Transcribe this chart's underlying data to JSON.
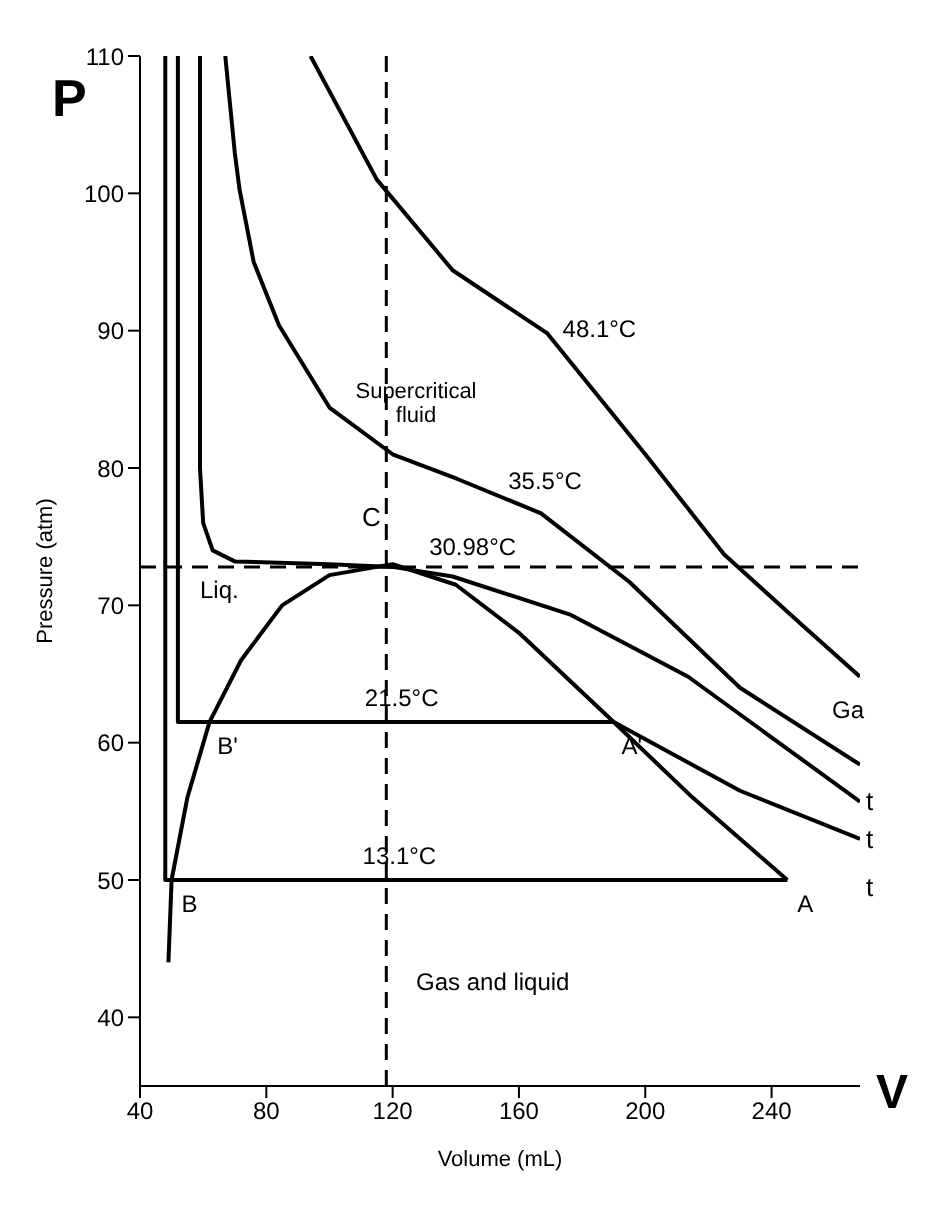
{
  "chart_data": {
    "type": "line",
    "xlabel": "Volume (mL)",
    "ylabel": "Pressure (atm)",
    "xlim": [
      40,
      268
    ],
    "xticks": [
      40,
      80,
      120,
      160,
      200,
      240
    ],
    "ylim": [
      35,
      110
    ],
    "yticks": [
      40,
      50,
      60,
      70,
      80,
      90,
      100,
      110
    ],
    "grid": false,
    "legend": false,
    "marker": "none",
    "line_style": "solid",
    "series": [
      {
        "name": "48.1°C",
        "color": "#000000",
        "x": [
          94,
          115,
          139,
          169,
          200,
          225,
          250,
          268
        ],
        "values": [
          110,
          101,
          94.4,
          89.8,
          81,
          73.7,
          68.5,
          64.8
        ]
      },
      {
        "name": "35.5°C",
        "color": "#000000",
        "x": [
          67,
          70,
          71.5,
          76,
          84,
          100,
          120,
          140.5,
          167,
          195,
          230,
          268
        ],
        "values": [
          110,
          103,
          100.3,
          95,
          90.4,
          84.4,
          81,
          79.2,
          76.7,
          71.7,
          64,
          58.4
        ]
      },
      {
        "name": "30.98°C",
        "color": "#000000",
        "x": [
          59,
          59,
          60,
          63,
          70,
          100,
          120,
          139,
          176.5,
          213.6,
          268
        ],
        "values": [
          110,
          80,
          76,
          74,
          73.2,
          73,
          72.8,
          72.1,
          69.3,
          64.8,
          55.7
        ]
      },
      {
        "name": "21.5°C",
        "color": "#000000",
        "x": [
          52,
          52,
          190,
          230,
          268
        ],
        "values": [
          110,
          61.5,
          61.5,
          56.5,
          53
        ]
      },
      {
        "name": "13.1°C",
        "color": "#000000",
        "x": [
          48,
          48,
          245
        ],
        "values": [
          110,
          50,
          50
        ]
      },
      {
        "color": "#000000",
        "x": [
          49,
          50,
          55,
          62,
          72,
          85,
          100,
          120,
          140,
          160,
          190,
          215,
          245
        ],
        "values": [
          44,
          50,
          56,
          61.5,
          66,
          70,
          72.2,
          73,
          71.5,
          68,
          61.5,
          56,
          50
        ]
      }
    ],
    "ref_lines": [
      {
        "axis": "y",
        "value": 72.8,
        "line_style": "dashed",
        "color": "#000000"
      },
      {
        "axis": "x",
        "value": 118,
        "line_style": "dashed",
        "color": "#000000"
      }
    ],
    "annotations": [
      "P",
      "V",
      "Supercritical fluid",
      "Liq.",
      "C",
      "Gas and liquid",
      "Ga",
      "t",
      "t",
      "t",
      {
        "text": "B'",
        "x": 62,
        "y": 61.5
      },
      {
        "text": "B",
        "x": 50,
        "y": 50
      },
      {
        "text": "A'",
        "x": 190,
        "y": 61.5
      },
      {
        "text": "A",
        "x": 245,
        "y": 50
      }
    ]
  }
}
